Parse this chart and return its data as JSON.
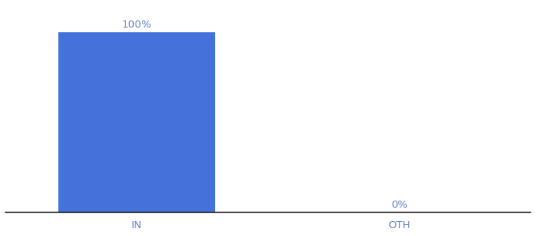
{
  "categories": [
    "IN",
    "OTH"
  ],
  "values": [
    100,
    0
  ],
  "bar_color": "#4472db",
  "label_color": "#6680cc",
  "axis_label_color": "#6680cc",
  "background_color": "#ffffff",
  "bar_width": 0.6,
  "ylim": [
    0,
    115
  ],
  "xlim": [
    -0.5,
    1.5
  ],
  "label_fontsize": 9.5,
  "tick_fontsize": 9.5,
  "value_labels": [
    "100%",
    "0%"
  ],
  "bottom_spine_color": "#222222",
  "bottom_spine_linewidth": 1.2
}
